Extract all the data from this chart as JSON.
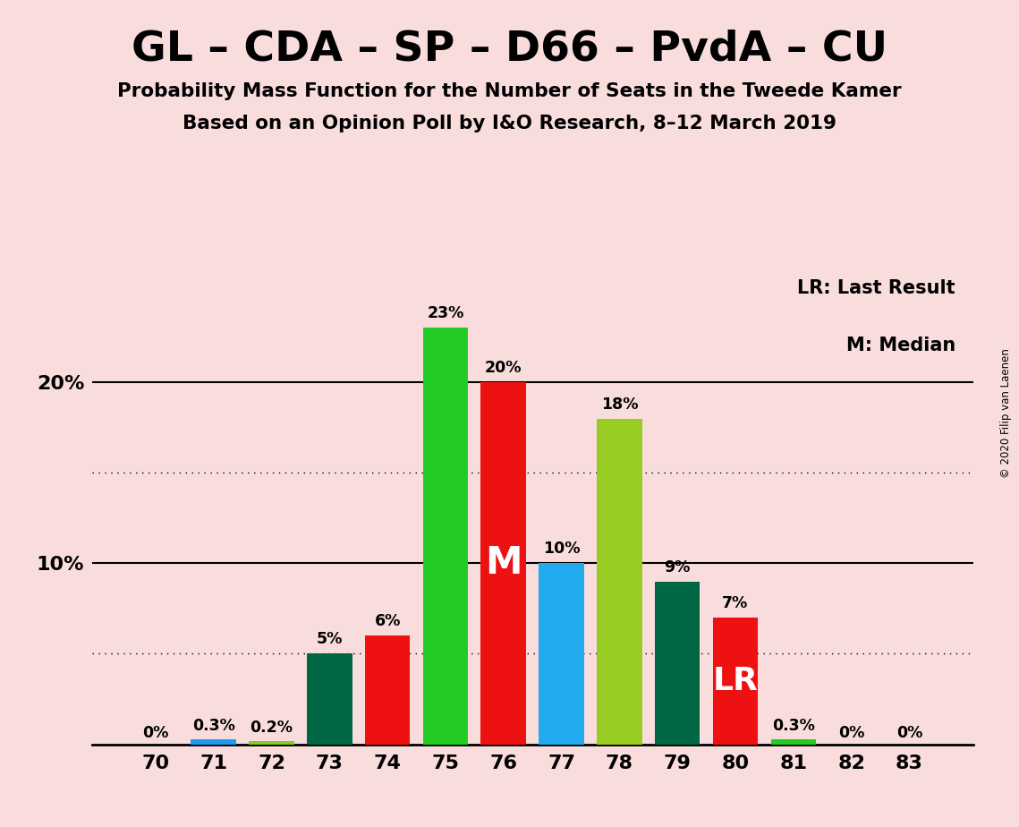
{
  "title": "GL – CDA – SP – D66 – PvdA – CU",
  "subtitle1": "Probability Mass Function for the Number of Seats in the Tweede Kamer",
  "subtitle2": "Based on an Opinion Poll by I&O Research, 8–12 March 2019",
  "copyright": "© 2020 Filip van Laenen",
  "seats": [
    70,
    71,
    72,
    73,
    74,
    75,
    76,
    77,
    78,
    79,
    80,
    81,
    82,
    83
  ],
  "probabilities": [
    0.0,
    0.3,
    0.2,
    5.0,
    6.0,
    23.0,
    20.0,
    10.0,
    18.0,
    9.0,
    7.0,
    0.3,
    0.0,
    0.0
  ],
  "bar_colors": [
    "#EE1111",
    "#2299EE",
    "#88CC22",
    "#006644",
    "#EE1111",
    "#22CC22",
    "#EE1111",
    "#22AAEE",
    "#99CC22",
    "#006644",
    "#EE1111",
    "#22CC22",
    "#EE1111",
    "#99CC22"
  ],
  "label_texts": [
    "0%",
    "0.3%",
    "0.2%",
    "5%",
    "6%",
    "23%",
    "20%",
    "10%",
    "18%",
    "9%",
    "7%",
    "0.3%",
    "0%",
    "0%"
  ],
  "median_seat": 76,
  "lr_seat": 80,
  "bg_color": "#F9DDDD",
  "major_yticks": [
    10,
    20
  ],
  "dotted_yticks": [
    5,
    15
  ],
  "ylim": [
    0,
    26.5
  ],
  "xlim": [
    68.9,
    84.1
  ],
  "bar_width": 0.78,
  "legend_lr": "LR: Last Result",
  "legend_m": "M: Median"
}
